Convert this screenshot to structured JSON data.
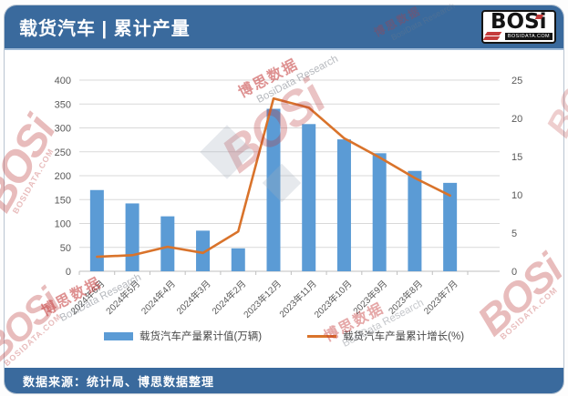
{
  "header": {
    "title": "载货汽车 | 累计产量",
    "logo": {
      "text": "BOSi",
      "subtext": "BOSIDATA.COM"
    }
  },
  "footer": {
    "source": "数据来源：统计局、博思数据整理"
  },
  "watermark": {
    "logo_text": "BOSi",
    "logo_sub": "BOSIDATA.COM",
    "brand_cn": "博思数据",
    "brand_en": "BosiData Research"
  },
  "colors": {
    "header_bg": "#3a6a9d",
    "bar": "#5b9bd5",
    "line": "#d9732b",
    "grid": "#d9d9d9",
    "axis_line": "#bfbfbf",
    "axis_text": "#595959"
  },
  "chart_data": {
    "type": "combo-bar-line",
    "title": "载货汽车 | 累计产量",
    "categories": [
      "2024年6月",
      "2024年5月",
      "2024年4月",
      "2024年3月",
      "2024年2月",
      "2023年12月",
      "2023年11月",
      "2023年10月",
      "2023年9月",
      "2023年8月",
      "2023年7月"
    ],
    "series": [
      {
        "name": "载货汽车产量累计值(万辆)",
        "type": "bar",
        "axis": "left",
        "color": "#5b9bd5",
        "values": [
          170,
          142,
          115,
          85,
          48,
          340,
          308,
          276,
          247,
          210,
          185
        ]
      },
      {
        "name": "载货汽车产量累计增长(%)",
        "type": "line",
        "axis": "right",
        "color": "#d9732b",
        "values": [
          1.9,
          2.1,
          3.2,
          2.4,
          5.2,
          22.6,
          21.4,
          17.4,
          14.9,
          12.2,
          9.9
        ]
      }
    ],
    "left_axis": {
      "min": 0,
      "max": 400,
      "step": 50
    },
    "right_axis": {
      "min": 0,
      "max": 25,
      "step": 5
    },
    "grid": true,
    "legend_position": "bottom",
    "x_label_rotation": -45
  }
}
